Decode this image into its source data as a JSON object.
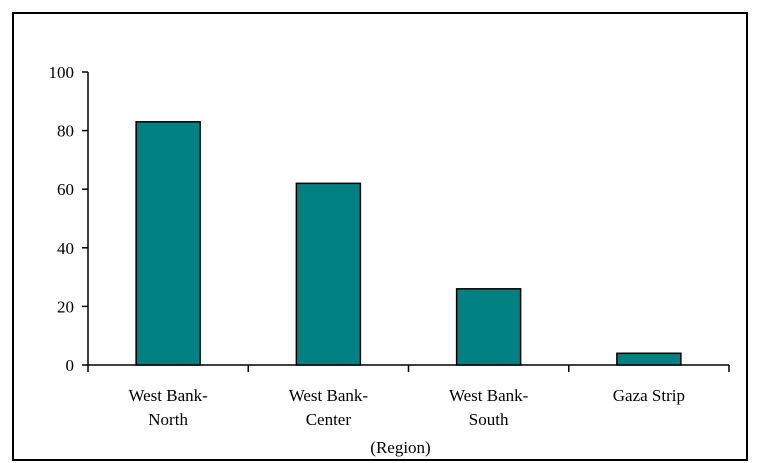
{
  "chart_data": {
    "type": "bar",
    "categories": [
      [
        "West Bank-",
        "North"
      ],
      [
        "West Bank-",
        "Center"
      ],
      [
        "West Bank-",
        "South"
      ],
      [
        "Gaza Strip"
      ]
    ],
    "values": [
      83,
      62,
      26,
      4
    ],
    "xlabel": "(Region)",
    "ylabel": "",
    "ylim": [
      0,
      100
    ],
    "yticks": [
      "0",
      "20",
      "40",
      "60",
      "80",
      "100"
    ],
    "bar_color": "#008080",
    "bar_stroke": "#000000",
    "grid": false,
    "legend": "none"
  }
}
